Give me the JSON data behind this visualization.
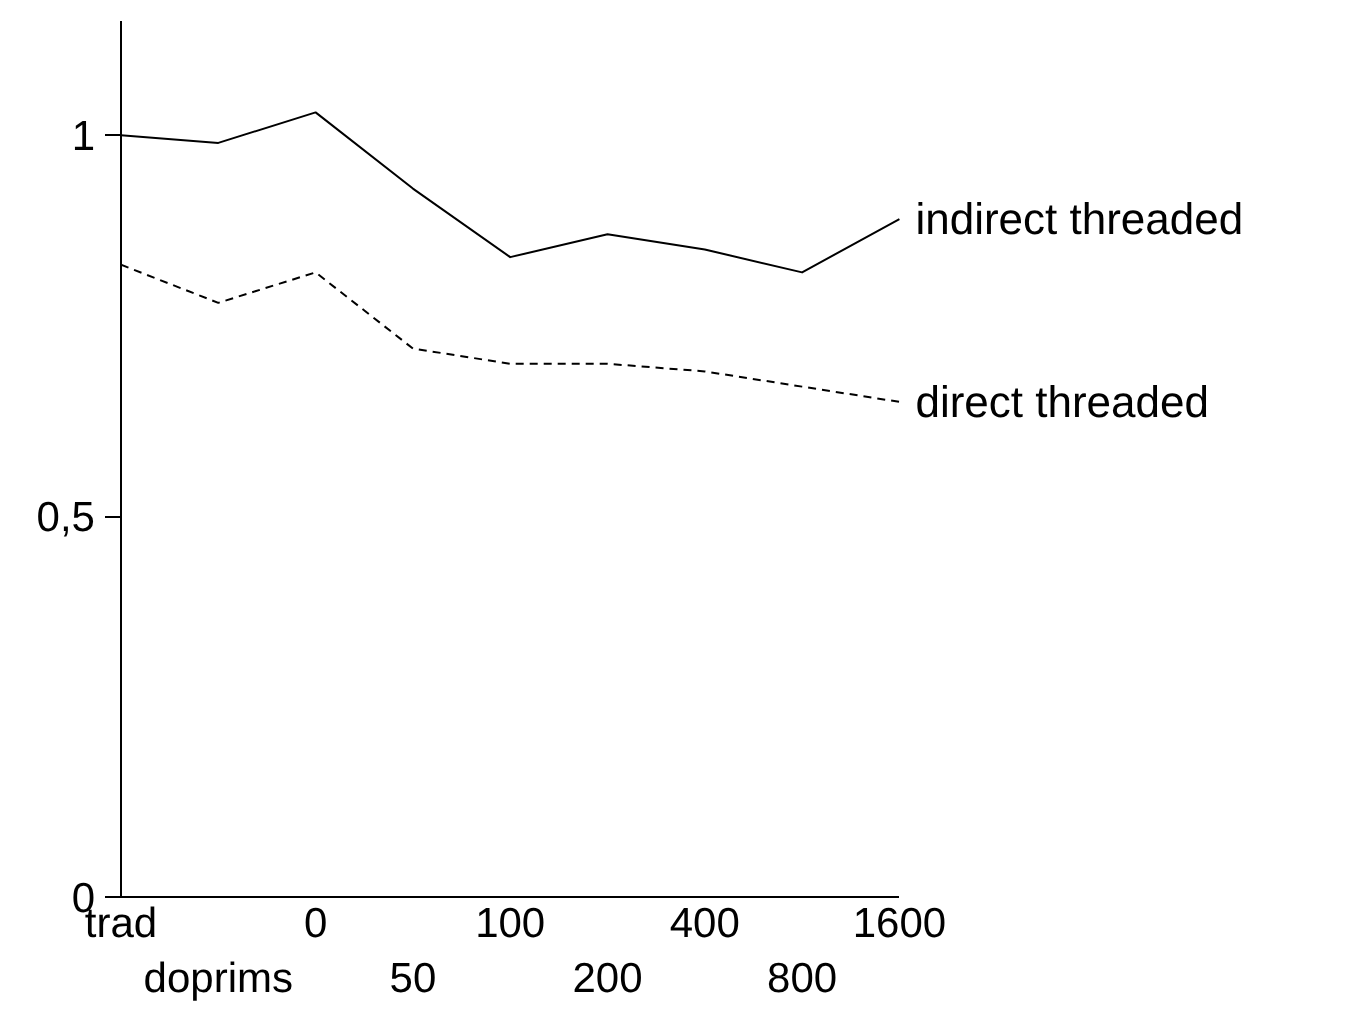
{
  "chart_data": {
    "type": "line",
    "categories": [
      "trad",
      "doprims",
      "0",
      "50",
      "100",
      "200",
      "400",
      "800",
      "1600"
    ],
    "series": [
      {
        "name": "indirect threaded",
        "color": "#000000",
        "line_style": "solid",
        "values": [
          1.0,
          0.99,
          1.03,
          0.93,
          0.84,
          0.87,
          0.85,
          0.82,
          0.89
        ]
      },
      {
        "name": "direct threaded",
        "color": "#000000",
        "line_style": "dashed",
        "values": [
          0.83,
          0.78,
          0.82,
          0.72,
          0.7,
          0.7,
          0.69,
          0.67,
          0.65
        ]
      }
    ],
    "ylim": [
      0,
      1.15
    ],
    "yticks": [
      0,
      {
        "value": 0.5,
        "label": "0,5"
      },
      1
    ],
    "grid": false,
    "marker": "none"
  }
}
